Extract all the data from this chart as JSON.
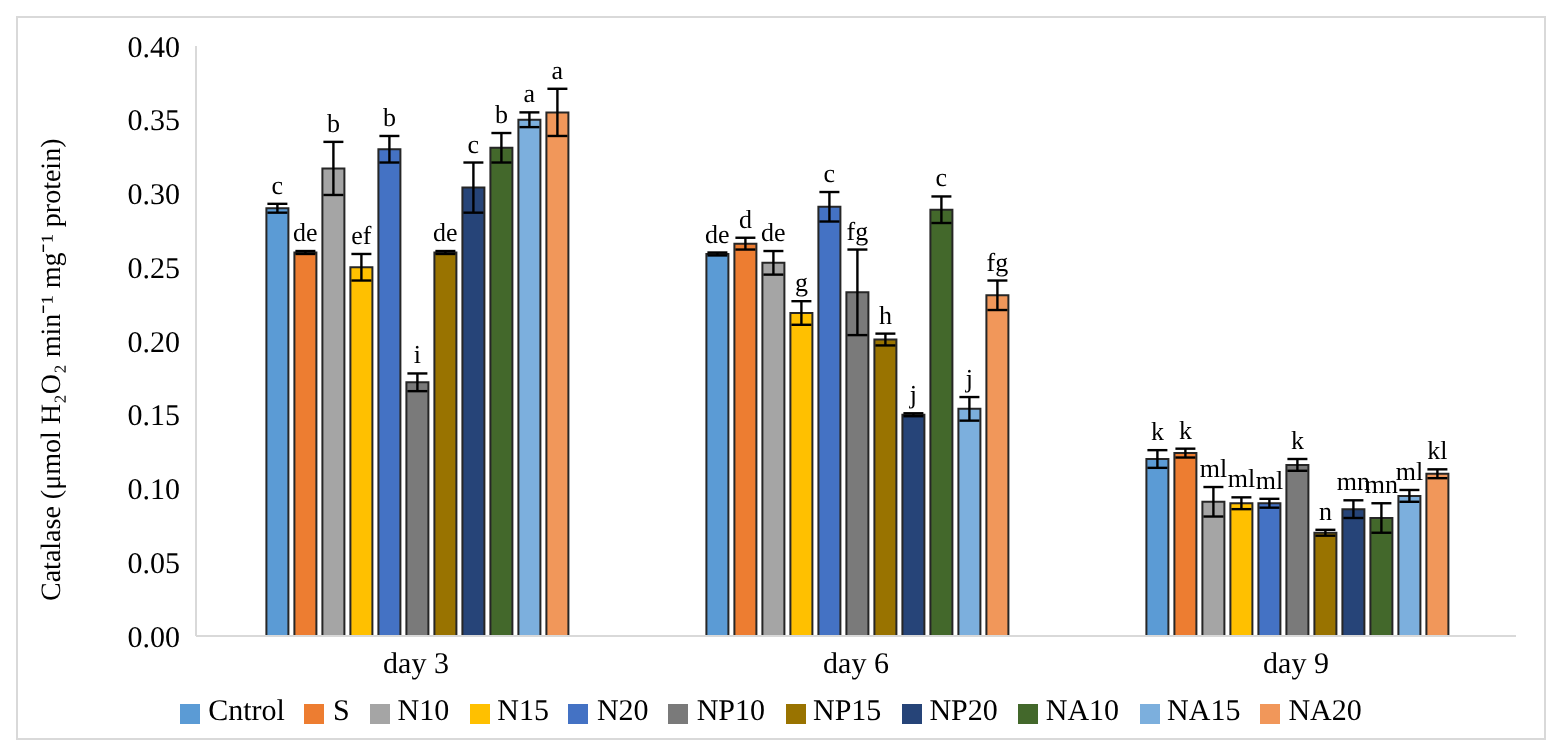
{
  "chart_data": {
    "type": "bar",
    "ylabel": "Catalase (μmol H₂O₂ min⁻¹ mg⁻¹ protein)",
    "categories": [
      "day 3",
      "day 6",
      "day 9"
    ],
    "ylim": [
      0,
      0.4
    ],
    "yticks": [
      {
        "value": 0,
        "label": "0.00"
      },
      {
        "value": 0.05,
        "label": "0.05"
      },
      {
        "value": 0.1,
        "label": "0.10"
      },
      {
        "value": 0.15,
        "label": "0.15"
      },
      {
        "value": 0.2,
        "label": "0.20"
      },
      {
        "value": 0.25,
        "label": "0.25"
      },
      {
        "value": 0.3,
        "label": "0.30"
      },
      {
        "value": 0.35,
        "label": "0.35"
      },
      {
        "value": 0.4,
        "label": "0.40"
      }
    ],
    "grid": false,
    "legend": "bottom",
    "series": [
      {
        "name": "Cntrol",
        "color": "#5b9bd5",
        "values": [
          0.29,
          0.259,
          0.12
        ],
        "errors": [
          0.003,
          0.001,
          0.006
        ],
        "value_labels": [
          "c",
          "de",
          "k"
        ]
      },
      {
        "name": "S",
        "color": "#ed7d31",
        "values": [
          0.26,
          0.266,
          0.124
        ],
        "errors": [
          0.001,
          0.004,
          0.003
        ],
        "value_labels": [
          "de",
          "d",
          "k"
        ]
      },
      {
        "name": "N10",
        "color": "#a5a5a5",
        "values": [
          0.317,
          0.253,
          0.091
        ],
        "errors": [
          0.018,
          0.008,
          0.01
        ],
        "value_labels": [
          "b",
          "de",
          "ml"
        ]
      },
      {
        "name": "N15",
        "color": "#ffc000",
        "values": [
          0.25,
          0.219,
          0.09
        ],
        "errors": [
          0.009,
          0.008,
          0.004
        ],
        "value_labels": [
          "ef",
          "g",
          "ml"
        ]
      },
      {
        "name": "N20",
        "color": "#4472c4",
        "values": [
          0.33,
          0.291,
          0.09
        ],
        "errors": [
          0.009,
          0.01,
          0.003
        ],
        "value_labels": [
          "b",
          "c",
          "ml"
        ]
      },
      {
        "name": "NP10",
        "color": "#7a7a7a",
        "values": [
          0.172,
          0.233,
          0.116
        ],
        "errors": [
          0.006,
          0.029,
          0.004
        ],
        "value_labels": [
          "i",
          "fg",
          "k"
        ]
      },
      {
        "name": "NP15",
        "color": "#997300",
        "values": [
          0.26,
          0.201,
          0.07
        ],
        "errors": [
          0.001,
          0.004,
          0.002
        ],
        "value_labels": [
          "de",
          "h",
          "n"
        ]
      },
      {
        "name": "NP20",
        "color": "#264478",
        "values": [
          0.304,
          0.15,
          0.086
        ],
        "errors": [
          0.017,
          0.001,
          0.006
        ],
        "value_labels": [
          "c",
          "j",
          "mn"
        ]
      },
      {
        "name": "NA10",
        "color": "#43682b",
        "values": [
          0.331,
          0.289,
          0.08
        ],
        "errors": [
          0.01,
          0.009,
          0.01
        ],
        "value_labels": [
          "b",
          "c",
          "mn"
        ]
      },
      {
        "name": "NA15",
        "color": "#7cafdd",
        "values": [
          0.35,
          0.154,
          0.095
        ],
        "errors": [
          0.005,
          0.008,
          0.004
        ],
        "value_labels": [
          "a",
          "j",
          "ml"
        ]
      },
      {
        "name": "NA20",
        "color": "#f1975a",
        "values": [
          0.355,
          0.231,
          0.11
        ],
        "errors": [
          0.016,
          0.01,
          0.003
        ],
        "value_labels": [
          "a",
          "fg",
          "kl"
        ]
      }
    ]
  }
}
